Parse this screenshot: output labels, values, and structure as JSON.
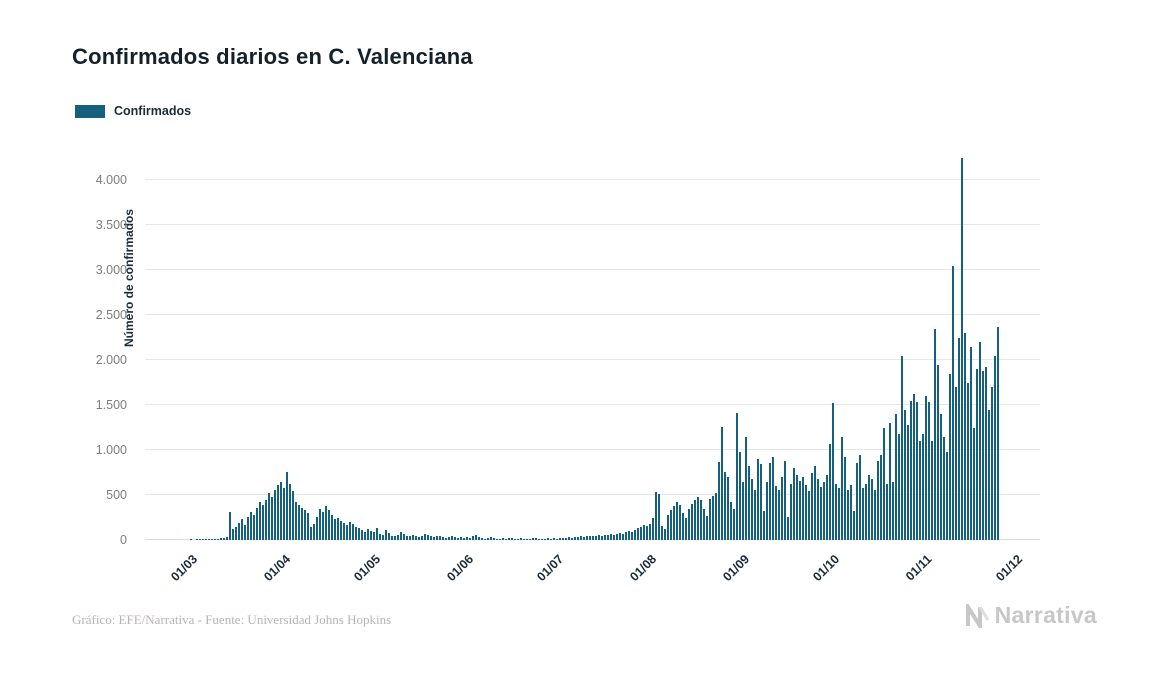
{
  "title": "Confirmados diarios en C. Valenciana",
  "legend": {
    "label": "Confirmados",
    "color": "#15607e"
  },
  "y_axis": {
    "label": "Número de confirmados",
    "ticks": [
      {
        "value": 0,
        "label": "0"
      },
      {
        "value": 500,
        "label": "500"
      },
      {
        "value": 1000,
        "label": "1.000"
      },
      {
        "value": 1500,
        "label": "1.500"
      },
      {
        "value": 2000,
        "label": "2.000"
      },
      {
        "value": 2500,
        "label": "2.500"
      },
      {
        "value": 3000,
        "label": "3.000"
      },
      {
        "value": 3500,
        "label": "3.500"
      },
      {
        "value": 4000,
        "label": "4.000"
      }
    ]
  },
  "x_axis": {
    "ticks": [
      {
        "label": "01/03",
        "day_index": 0
      },
      {
        "label": "01/04",
        "day_index": 31
      },
      {
        "label": "01/05",
        "day_index": 61
      },
      {
        "label": "01/06",
        "day_index": 92
      },
      {
        "label": "01/07",
        "day_index": 122
      },
      {
        "label": "01/08",
        "day_index": 153
      },
      {
        "label": "01/09",
        "day_index": 184
      },
      {
        "label": "01/10",
        "day_index": 214
      },
      {
        "label": "01/11",
        "day_index": 245
      },
      {
        "label": "01/12",
        "day_index": 275
      }
    ]
  },
  "footer": "Gráfico: EFE/Narrativa - Fuente: Universidad Johns Hopkins",
  "logo": "Narrativa",
  "chart_data": {
    "type": "bar",
    "title": "Confirmados diarios en C. Valenciana",
    "series_name": "Confirmados",
    "xlabel": "",
    "ylabel": "Número de confirmados",
    "ylim": [
      0,
      4300
    ],
    "grid": true,
    "legend_position": "top-left",
    "bar_color": "#15607e",
    "x_start_date": "01/03",
    "x_unit": "day",
    "note": "daily values estimated from bar heights, one bar per day from 1 March to 25 November",
    "values": [
      2,
      0,
      1,
      3,
      2,
      5,
      8,
      10,
      15,
      12,
      20,
      25,
      35,
      310,
      120,
      150,
      190,
      230,
      170,
      260,
      310,
      280,
      360,
      420,
      390,
      450,
      520,
      480,
      560,
      610,
      650,
      580,
      760,
      620,
      540,
      420,
      390,
      360,
      330,
      300,
      150,
      180,
      260,
      350,
      310,
      380,
      330,
      280,
      230,
      250,
      210,
      190,
      170,
      200,
      180,
      150,
      130,
      110,
      90,
      120,
      100,
      90,
      130,
      70,
      60,
      110,
      80,
      50,
      40,
      60,
      90,
      70,
      50,
      40,
      60,
      50,
      30,
      40,
      70,
      60,
      40,
      30,
      50,
      40,
      30,
      20,
      30,
      40,
      30,
      20,
      30,
      25,
      30,
      20,
      40,
      60,
      35,
      25,
      15,
      20,
      30,
      25,
      15,
      10,
      20,
      15,
      25,
      20,
      10,
      15,
      20,
      15,
      10,
      15,
      25,
      20,
      15,
      10,
      15,
      20,
      15,
      20,
      15,
      20,
      25,
      20,
      30,
      25,
      35,
      30,
      40,
      35,
      45,
      40,
      50,
      45,
      55,
      50,
      60,
      55,
      65,
      60,
      70,
      80,
      70,
      90,
      100,
      85,
      110,
      130,
      150,
      170,
      160,
      180,
      250,
      530,
      510,
      160,
      120,
      280,
      330,
      380,
      420,
      390,
      300,
      250,
      340,
      400,
      440,
      480,
      450,
      350,
      270,
      460,
      490,
      520,
      870,
      1260,
      760,
      700,
      420,
      350,
      1410,
      980,
      650,
      1150,
      820,
      680,
      560,
      900,
      840,
      320,
      640,
      860,
      920,
      600,
      560,
      700,
      880,
      260,
      620,
      800,
      720,
      660,
      700,
      610,
      550,
      740,
      820,
      680,
      590,
      640,
      720,
      1070,
      1520,
      620,
      580,
      1150,
      920,
      560,
      610,
      320,
      860,
      950,
      580,
      620,
      720,
      680,
      560,
      880,
      940,
      1250,
      620,
      1300,
      640,
      1400,
      1180,
      2050,
      1450,
      1280,
      1550,
      1620,
      1530,
      1100,
      1180,
      1600,
      1530,
      1100,
      2350,
      1950,
      1400,
      1150,
      980,
      1850,
      3050,
      1700,
      2250,
      4250,
      2300,
      1750,
      2150,
      1250,
      1900,
      2200,
      1880,
      1920,
      1450,
      1700,
      2050,
      2370
    ]
  }
}
